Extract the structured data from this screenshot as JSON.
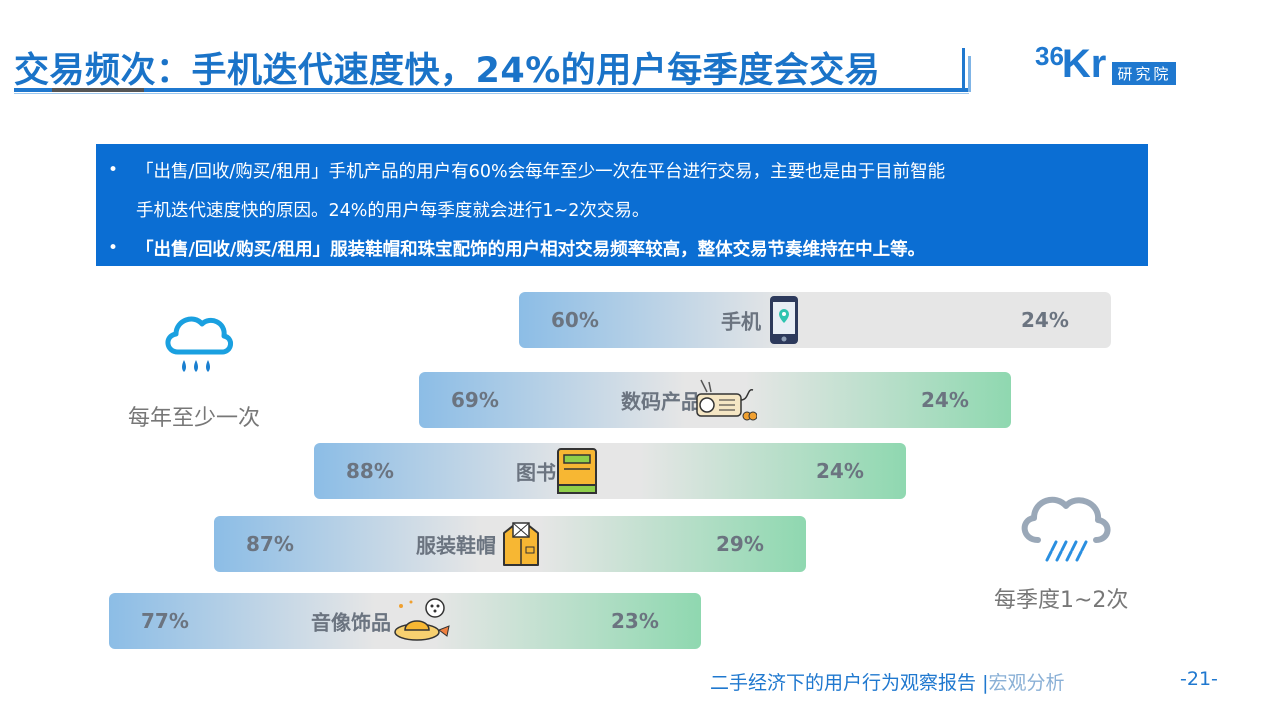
{
  "header": {
    "title": "交易频次：手机迭代速度快，24%的用户每季度会交易",
    "logo": {
      "main_36": "36",
      "main_kr": "Kr",
      "sub": "研究院"
    }
  },
  "info": {
    "bullet_symbol": "•",
    "line1a": "「出售/回收/购买/租用」手机产品的用户有60%会每年至少一次在平台进行交易，主要也是由于目前智能",
    "line1b": "手机迭代速度快的原因。24%的用户每季度就会进行1~2次交易。",
    "line2": "「出售/回收/购买/租用」服装鞋帽和珠宝配饰的用户相对交易频率较高，整体交易节奏维持在中上等。"
  },
  "legend": {
    "yearly": "每年至少一次",
    "quarterly": "每季度1~2次"
  },
  "chart_data": {
    "type": "bar",
    "categories": [
      "手机",
      "数码产品",
      "图书",
      "服装鞋帽",
      "音像饰品"
    ],
    "series": [
      {
        "name": "每年至少一次",
        "values": [
          60,
          69,
          88,
          87,
          77
        ],
        "labels": [
          "60%",
          "69%",
          "88%",
          "87%",
          "77%"
        ]
      },
      {
        "name": "每季度1~2次",
        "values": [
          24,
          24,
          24,
          29,
          23
        ],
        "labels": [
          "24%",
          "24%",
          "24%",
          "29%",
          "23%"
        ]
      }
    ],
    "icons": [
      "phone-icon",
      "radio-icon",
      "book-icon",
      "shirt-icon",
      "hat-icon"
    ],
    "colors": {
      "left": "#8cbde6",
      "mid": "#e6e6e6",
      "right_phone": "#e6e6e6",
      "right": "#8fd8b0"
    }
  },
  "footer": {
    "report": "二手经济下的用户行为观察报告",
    "sep": "|",
    "section": "宏观分析",
    "page": "-21-"
  }
}
